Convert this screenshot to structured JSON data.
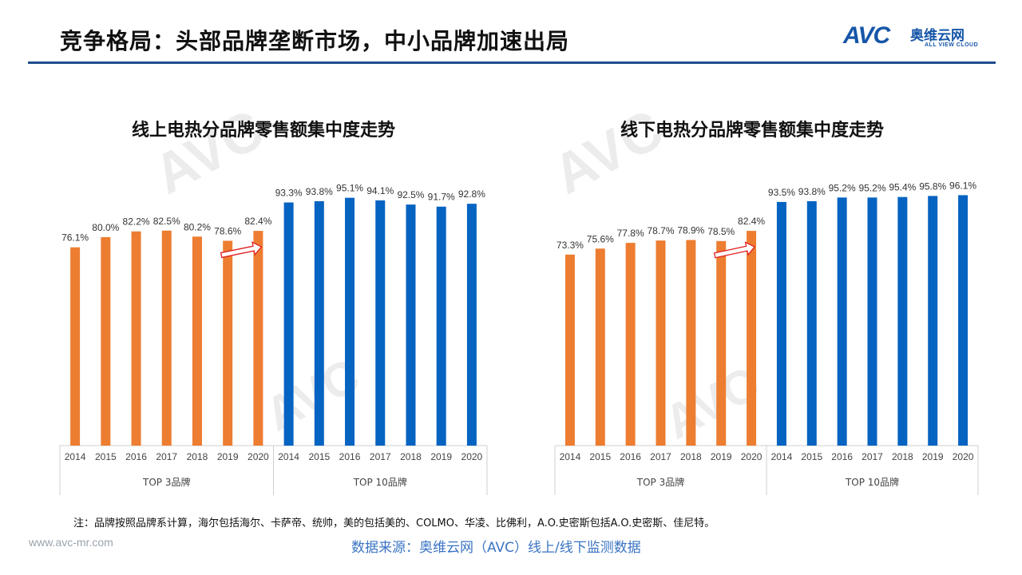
{
  "header": {
    "title": "竞争格局：头部品牌垄断市场，中小品牌加速出局"
  },
  "logo": {
    "brand": "AVC",
    "name_cn": "奥维云网",
    "name_en": "ALL VIEW CLOUD"
  },
  "colors": {
    "top3": "#ed7d31",
    "top10": "#0563c1",
    "arrow": "#e02020",
    "rule": "#1f4e8c"
  },
  "chart_data": [
    {
      "type": "bar",
      "title": "线上电热分品牌零售额集中度走势",
      "ylim": [
        0,
        100
      ],
      "groups": [
        {
          "name": "TOP 3品牌",
          "categories": [
            "2014",
            "2015",
            "2016",
            "2017",
            "2018",
            "2019",
            "2020"
          ],
          "values": [
            76.1,
            80.0,
            82.2,
            82.5,
            80.2,
            78.6,
            82.4
          ],
          "labels": [
            "76.1%",
            "80.0%",
            "82.2%",
            "82.5%",
            "80.2%",
            "78.6%",
            "82.4%"
          ]
        },
        {
          "name": "TOP 10品牌",
          "categories": [
            "2014",
            "2015",
            "2016",
            "2017",
            "2018",
            "2019",
            "2020"
          ],
          "values": [
            93.3,
            93.8,
            95.1,
            94.1,
            92.5,
            91.7,
            92.8
          ],
          "labels": [
            "93.3%",
            "93.8%",
            "95.1%",
            "94.1%",
            "92.5%",
            "91.7%",
            "92.8%"
          ]
        }
      ]
    },
    {
      "type": "bar",
      "title": "线下电热分品牌零售额集中度走势",
      "ylim": [
        0,
        100
      ],
      "groups": [
        {
          "name": "TOP 3品牌",
          "categories": [
            "2014",
            "2015",
            "2016",
            "2017",
            "2018",
            "2019",
            "2020"
          ],
          "values": [
            73.3,
            75.6,
            77.8,
            78.7,
            78.9,
            78.5,
            82.4
          ],
          "labels": [
            "73.3%",
            "75.6%",
            "77.8%",
            "78.7%",
            "78.9%",
            "78.5%",
            "82.4%"
          ]
        },
        {
          "name": "TOP 10品牌",
          "categories": [
            "2014",
            "2015",
            "2016",
            "2017",
            "2018",
            "2019",
            "2020"
          ],
          "values": [
            93.5,
            93.8,
            95.2,
            95.2,
            95.4,
            95.8,
            96.1
          ],
          "labels": [
            "93.5%",
            "93.8%",
            "95.2%",
            "95.2%",
            "95.4%",
            "95.8%",
            "96.1%"
          ]
        }
      ]
    }
  ],
  "footer": {
    "note": "注：品牌按照品牌系计算，海尔包括海尔、卡萨帝、统帅，美的包括美的、COLMO、华凌、比佛利，A.O.史密斯包括A.O.史密斯、佳尼特。",
    "site": "www.avc-mr.com",
    "source": "数据来源：奥维云网（AVC）线上/线下监测数据"
  }
}
